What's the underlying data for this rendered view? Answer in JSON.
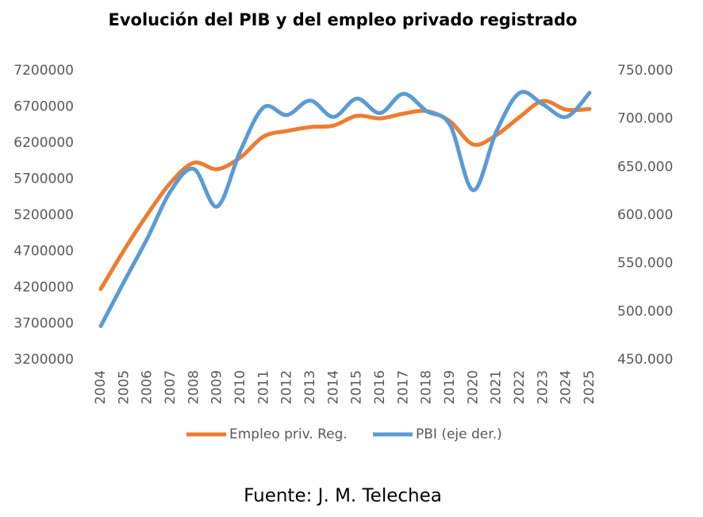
{
  "chart_data": {
    "type": "line",
    "title": "Evolución del PIB y del empleo privado registrado",
    "source": "Fuente: J. M. Telechea",
    "categories": [
      "2004",
      "2005",
      "2006",
      "2007",
      "2008",
      "2009",
      "2010",
      "2011",
      "2012",
      "2013",
      "2014",
      "2015",
      "2016",
      "2017",
      "2018",
      "2019",
      "2020",
      "2021",
      "2022",
      "2023",
      "2024",
      "2025"
    ],
    "ylim": [
      3200000,
      7200000
    ],
    "yticks": [
      3200000,
      3700000,
      4200000,
      4700000,
      5200000,
      5700000,
      6200000,
      6700000,
      7200000
    ],
    "y2lim": [
      450000,
      750000
    ],
    "y2ticks": [
      {
        "value": 450000,
        "label": "450.000"
      },
      {
        "value": 500000,
        "label": "500.000"
      },
      {
        "value": 550000,
        "label": "550.000"
      },
      {
        "value": 600000,
        "label": "600.000"
      },
      {
        "value": 650000,
        "label": "650.000"
      },
      {
        "value": 700000,
        "label": "700.000"
      },
      {
        "value": 750000,
        "label": "750.000"
      }
    ],
    "legend": "bottom",
    "series": [
      {
        "name": "Empleo priv. Reg.",
        "color": "#ed7d31",
        "values": [
          4180000,
          4716000,
          5210000,
          5650000,
          5925000,
          5837000,
          6000000,
          6290000,
          6365000,
          6420000,
          6440000,
          6575000,
          6540000,
          6605000,
          6640000,
          6500000,
          6180000,
          6310000,
          6560000,
          6780000,
          6660000,
          6670000
        ]
      },
      {
        "name": "PBI (eje der.)",
        "color": "#5b9bd5",
        "axis": "y2",
        "values": [
          485000,
          531000,
          576000,
          625000,
          648000,
          609000,
          667000,
          712000,
          704000,
          719000,
          702000,
          721000,
          706000,
          726000,
          708000,
          694000,
          626000,
          687000,
          727000,
          715000,
          702000,
          727000
        ]
      }
    ]
  }
}
